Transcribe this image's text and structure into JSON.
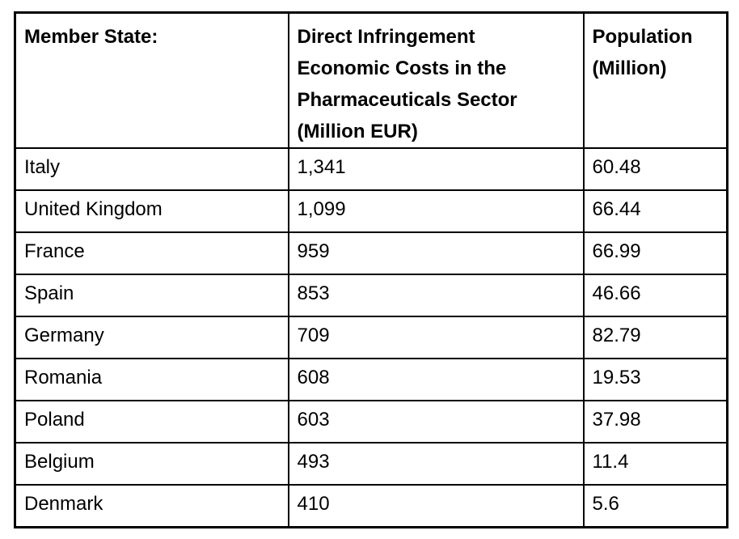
{
  "page": {
    "background_color": "#ffffff",
    "text_color": "#000000",
    "border_color": "#000000"
  },
  "table": {
    "columns": [
      {
        "id": "member_state",
        "label": "Member State:"
      },
      {
        "id": "cost",
        "label": "Direct Infringement Economic Costs in the Pharmaceuticals Sector (Million EUR)",
        "lines": [
          "Direct Infringement",
          "Economic Costs in the",
          "Pharmaceuticals Sector",
          "(Million EUR)"
        ]
      },
      {
        "id": "population",
        "label": "Population (Million)",
        "lines": [
          "Population",
          "(Million)"
        ]
      }
    ],
    "rows": [
      {
        "member_state": "Italy",
        "cost": "1,341",
        "population": "60.48"
      },
      {
        "member_state": "United Kingdom",
        "cost": "1,099",
        "population": "66.44"
      },
      {
        "member_state": "France",
        "cost": "959",
        "population": "66.99"
      },
      {
        "member_state": "Spain",
        "cost": "853",
        "population": "46.66"
      },
      {
        "member_state": "Germany",
        "cost": "709",
        "population": "82.79"
      },
      {
        "member_state": "Romania",
        "cost": "608",
        "population": "19.53"
      },
      {
        "member_state": "Poland",
        "cost": "603",
        "population": "37.98"
      },
      {
        "member_state": "Belgium",
        "cost": "493",
        "population": "11.4"
      },
      {
        "member_state": "Denmark",
        "cost": "410",
        "population": "5.6"
      }
    ]
  }
}
